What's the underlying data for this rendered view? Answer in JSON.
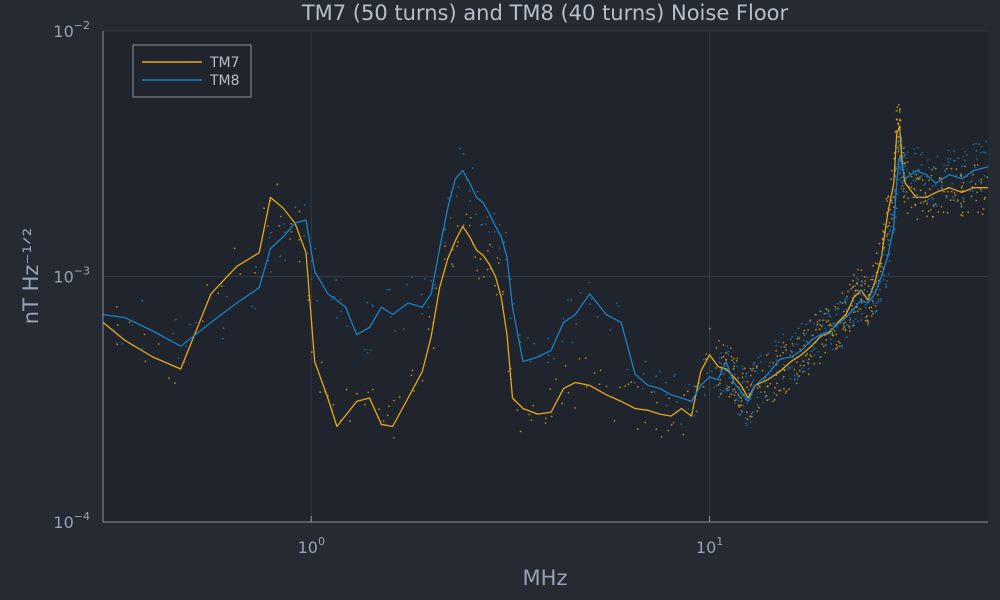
{
  "chart_data": {
    "type": "line",
    "title": "TM7 (50 turns) and TM8 (40 turns) Noise Floor",
    "xlabel": "MHz",
    "ylabel": "nT Hz⁻¹ᐟ²",
    "x_scale": "log",
    "y_scale": "log",
    "xlim": [
      0.3,
      50
    ],
    "ylim": [
      0.0001,
      0.01
    ],
    "x_ticks": [
      {
        "value": 1,
        "base": "10",
        "exp": "0"
      },
      {
        "value": 10,
        "base": "10",
        "exp": "1"
      }
    ],
    "y_ticks": [
      {
        "value": 0.0001,
        "base": "10",
        "exp": "−4"
      },
      {
        "value": 0.001,
        "base": "10",
        "exp": "−3"
      },
      {
        "value": 0.01,
        "base": "10",
        "exp": "−2"
      }
    ],
    "grid": true,
    "legend": "top-left",
    "series": [
      {
        "name": "TM7",
        "color": "#e3a81b",
        "x": [
          0.3,
          0.34,
          0.4,
          0.47,
          0.56,
          0.65,
          0.74,
          0.79,
          0.85,
          0.91,
          0.97,
          1.02,
          1.1,
          1.16,
          1.3,
          1.4,
          1.5,
          1.6,
          1.75,
          1.9,
          2.0,
          2.1,
          2.2,
          2.3,
          2.4,
          2.5,
          2.6,
          2.7,
          2.8,
          2.9,
          3.0,
          3.1,
          3.2,
          3.4,
          3.7,
          4.0,
          4.3,
          4.6,
          5.0,
          5.5,
          6.0,
          6.5,
          7.0,
          7.5,
          8.0,
          8.5,
          9.0,
          9.5,
          10.0,
          10.5,
          11.0,
          11.5,
          12.0,
          12.5,
          13.0,
          14.0,
          15.0,
          16.0,
          17.0,
          18.0,
          19.0,
          20.0,
          21.0,
          22.0,
          23.0,
          24.0,
          25.0,
          26.0,
          27.0,
          28.0,
          29.0,
          29.5,
          30.0,
          30.5,
          31.0,
          33.0,
          35.0,
          37.0,
          40.0,
          43.0,
          46.0,
          50.0
        ],
        "y": [
          0.00065,
          0.00055,
          0.00047,
          0.00042,
          0.00085,
          0.0011,
          0.00125,
          0.0021,
          0.0019,
          0.00165,
          0.00125,
          0.00045,
          0.00032,
          0.000245,
          0.00031,
          0.00032,
          0.00025,
          0.000245,
          0.00032,
          0.00041,
          0.00057,
          0.0009,
          0.00118,
          0.0014,
          0.0016,
          0.00145,
          0.00128,
          0.00122,
          0.00112,
          0.001,
          0.00082,
          0.00058,
          0.00032,
          0.00029,
          0.000275,
          0.00028,
          0.00035,
          0.00037,
          0.00036,
          0.00033,
          0.00031,
          0.00029,
          0.000285,
          0.000275,
          0.00027,
          0.00029,
          0.00027,
          0.00041,
          0.00048,
          0.00043,
          0.00042,
          0.00039,
          0.00036,
          0.00032,
          0.00036,
          0.00038,
          0.00041,
          0.00045,
          0.00048,
          0.00052,
          0.00057,
          0.00059,
          0.00065,
          0.0007,
          0.00082,
          0.00088,
          0.0008,
          0.00095,
          0.0012,
          0.0018,
          0.0024,
          0.0038,
          0.0041,
          0.0028,
          0.0024,
          0.0021,
          0.0021,
          0.0022,
          0.0023,
          0.0022,
          0.0023,
          0.0023
        ]
      },
      {
        "name": "TM8",
        "color": "#1b80c4",
        "x": [
          0.3,
          0.34,
          0.4,
          0.47,
          0.56,
          0.65,
          0.74,
          0.79,
          0.85,
          0.91,
          0.97,
          1.02,
          1.1,
          1.16,
          1.22,
          1.3,
          1.4,
          1.5,
          1.6,
          1.75,
          1.9,
          2.0,
          2.1,
          2.2,
          2.3,
          2.4,
          2.5,
          2.6,
          2.7,
          2.8,
          2.9,
          3.0,
          3.1,
          3.2,
          3.4,
          3.7,
          4.0,
          4.3,
          4.6,
          5.0,
          5.5,
          6.0,
          6.5,
          7.0,
          7.5,
          8.0,
          8.5,
          9.0,
          9.5,
          10.0,
          10.5,
          11.0,
          11.5,
          12.0,
          12.5,
          13.0,
          14.0,
          15.0,
          16.0,
          17.0,
          18.0,
          19.0,
          20.0,
          21.0,
          22.0,
          23.0,
          24.0,
          25.0,
          26.0,
          27.0,
          28.0,
          29.0,
          29.5,
          30.0,
          30.5,
          31.0,
          33.0,
          35.0,
          37.0,
          40.0,
          43.0,
          46.0,
          50.0
        ],
        "y": [
          0.0007,
          0.00068,
          0.0006,
          0.00052,
          0.00065,
          0.00078,
          0.0009,
          0.0013,
          0.00145,
          0.00165,
          0.0017,
          0.00105,
          0.00085,
          0.0008,
          0.00075,
          0.00058,
          0.00062,
          0.00075,
          0.0007,
          0.00078,
          0.00075,
          0.00085,
          0.0013,
          0.0019,
          0.0025,
          0.0027,
          0.0024,
          0.0021,
          0.002,
          0.0018,
          0.0016,
          0.00145,
          0.0012,
          0.00075,
          0.00045,
          0.00047,
          0.0005,
          0.00065,
          0.0007,
          0.00085,
          0.0007,
          0.00065,
          0.0004,
          0.00036,
          0.00035,
          0.00033,
          0.00032,
          0.00031,
          0.00036,
          0.00039,
          0.00038,
          0.00045,
          0.00037,
          0.00034,
          0.00031,
          0.00036,
          0.0004,
          0.00046,
          0.00047,
          0.0005,
          0.00055,
          0.00058,
          0.0006,
          0.00064,
          0.00068,
          0.00074,
          0.0008,
          0.00078,
          0.00085,
          0.001,
          0.0012,
          0.0016,
          0.0024,
          0.0031,
          0.0028,
          0.0025,
          0.0027,
          0.0026,
          0.0024,
          0.0026,
          0.0025,
          0.0027,
          0.0028
        ]
      }
    ]
  }
}
